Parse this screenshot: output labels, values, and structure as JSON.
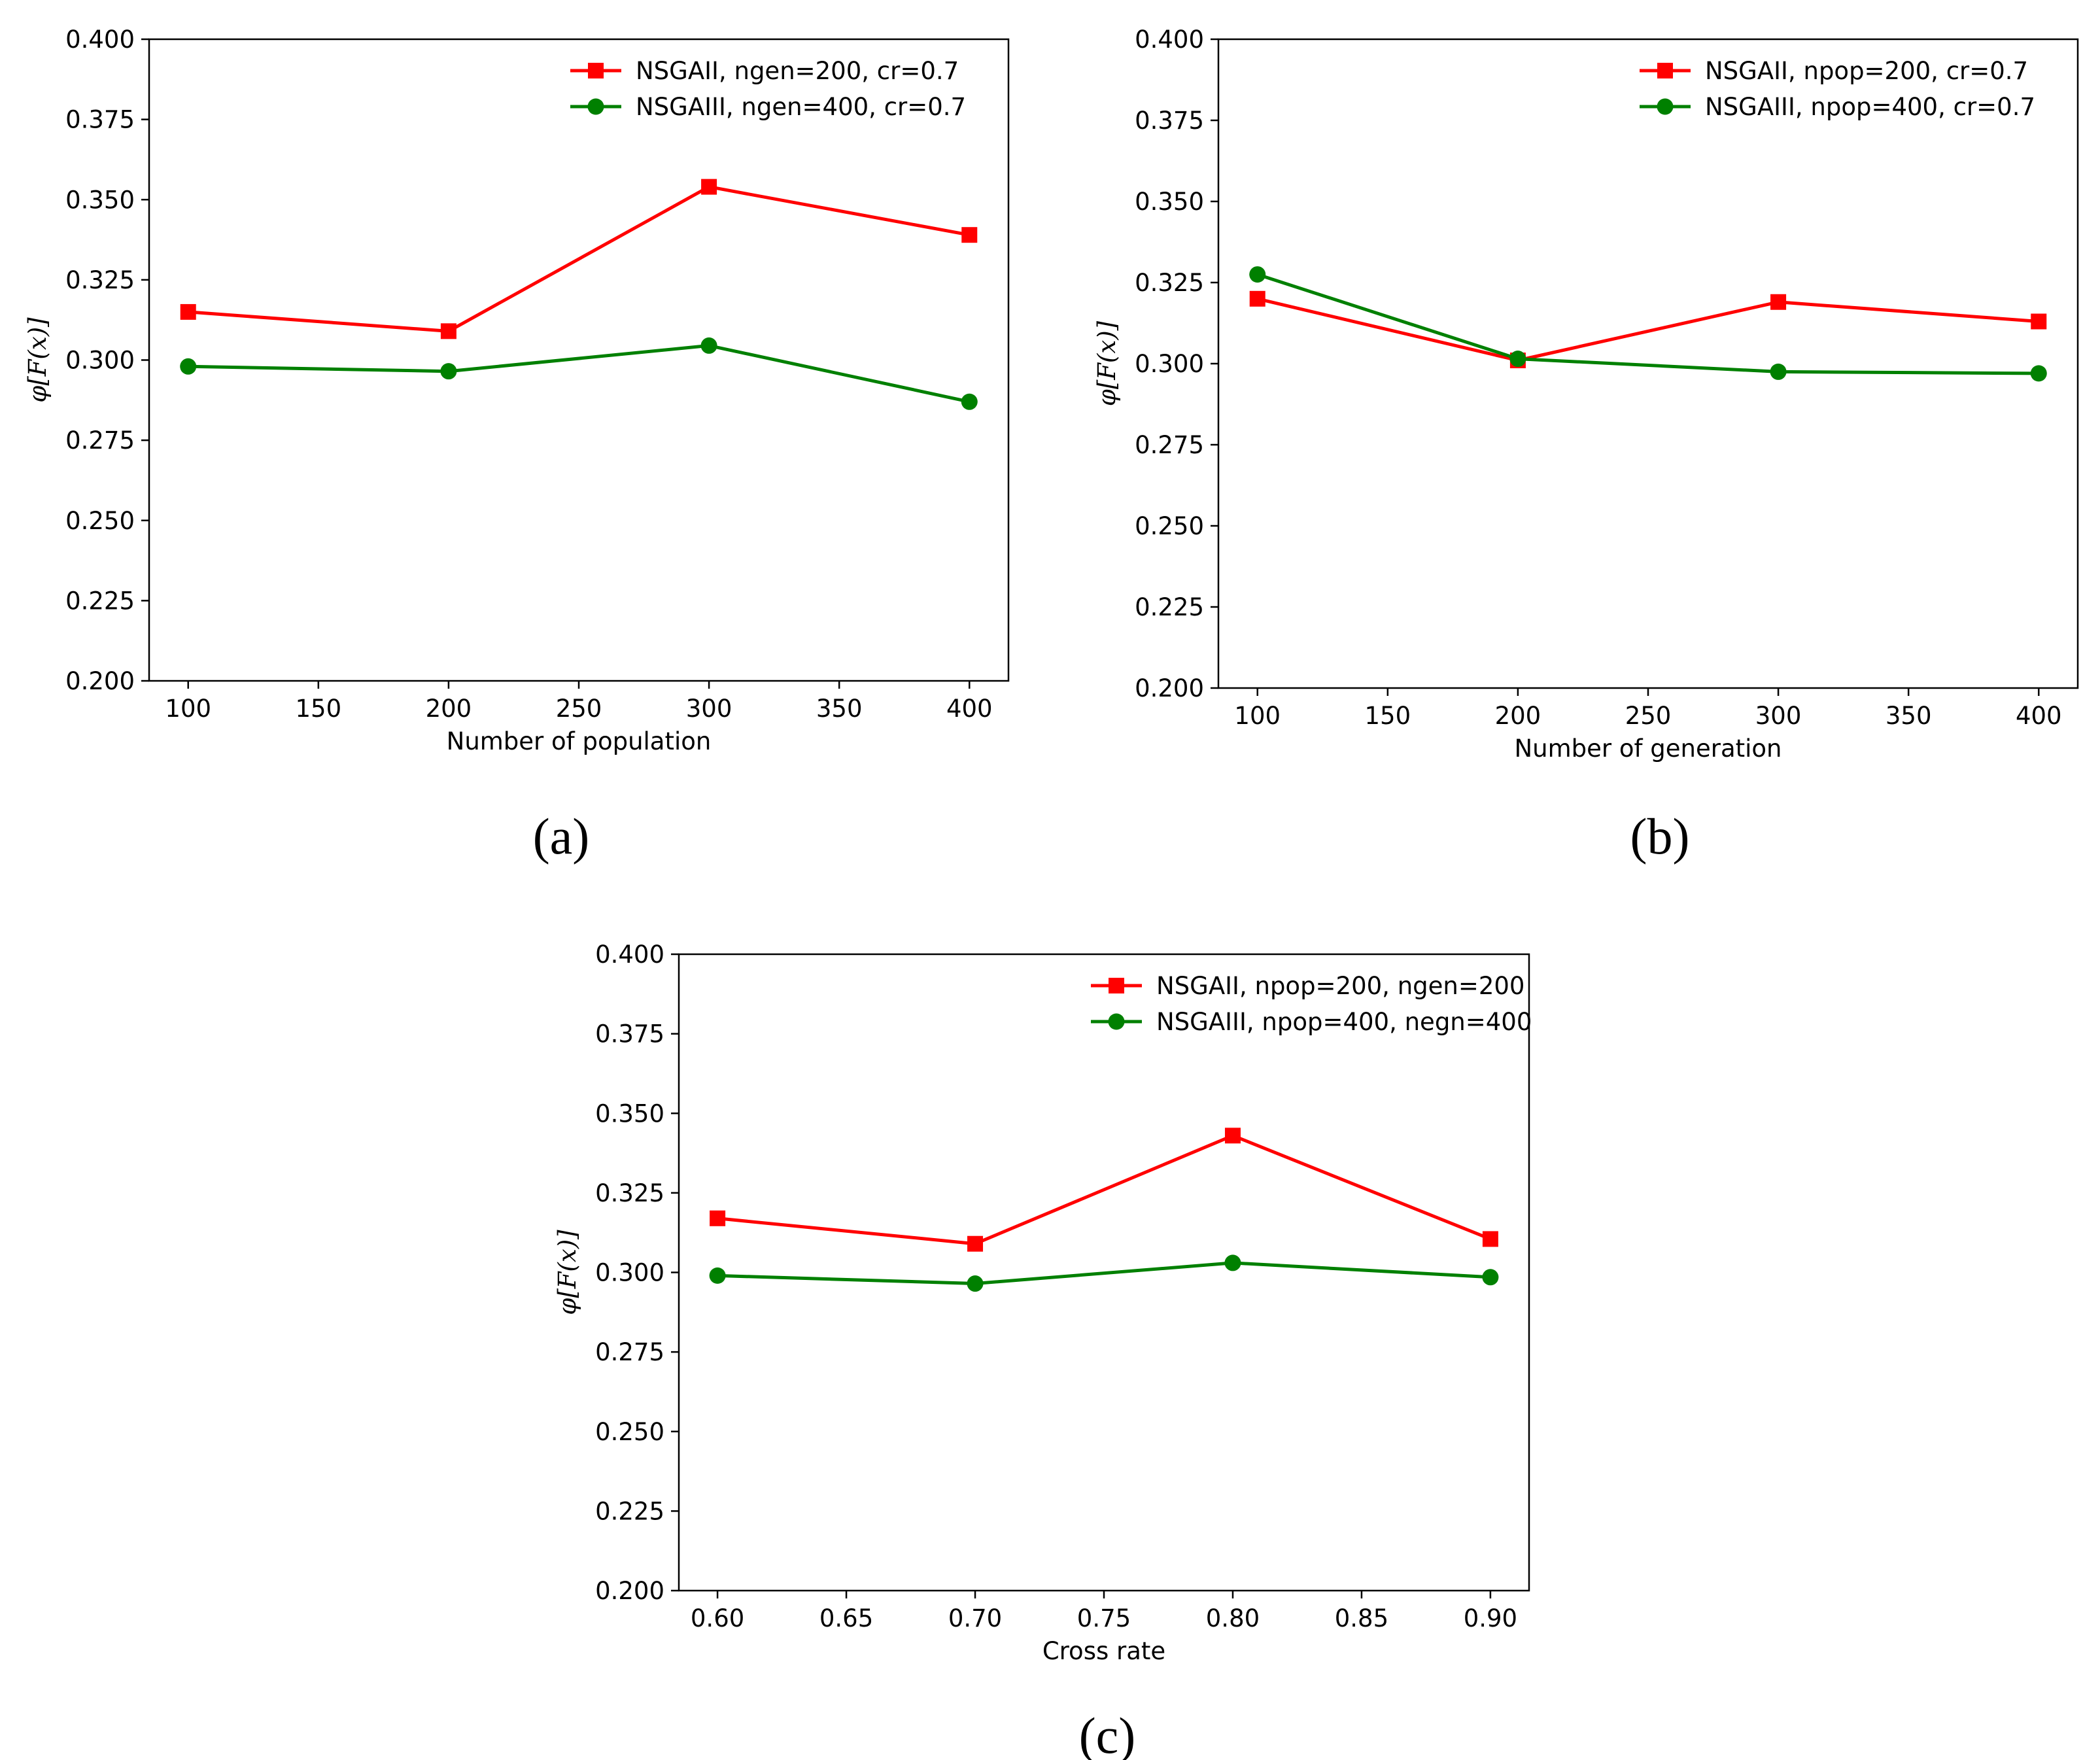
{
  "chart_data": [
    {
      "type": "line",
      "caption": "(a)",
      "xlabel": "Number of population",
      "ylabel": "φ[F(x)]",
      "x": [
        100,
        200,
        300,
        400
      ],
      "xlim": [
        85,
        415
      ],
      "ylim": [
        0.2,
        0.4
      ],
      "xticks": [
        100,
        150,
        200,
        250,
        300,
        350,
        400
      ],
      "xtick_labels": [
        "100",
        "150",
        "200",
        "250",
        "300",
        "350",
        "400"
      ],
      "yticks": [
        0.2,
        0.225,
        0.25,
        0.275,
        0.3,
        0.325,
        0.35,
        0.375,
        0.4
      ],
      "ytick_labels": [
        "0.200",
        "0.225",
        "0.250",
        "0.275",
        "0.300",
        "0.325",
        "0.350",
        "0.375",
        "0.400"
      ],
      "legend_position": "top-right",
      "grid": false,
      "series": [
        {
          "name": "NSGAII, ngen=200, cr=0.7",
          "color": "#ff0000",
          "marker": "square",
          "values": [
            0.315,
            0.309,
            0.354,
            0.339
          ]
        },
        {
          "name": "NSGAIII, ngen=400, cr=0.7",
          "color": "#008000",
          "marker": "circle",
          "values": [
            0.298,
            0.2965,
            0.3045,
            0.287
          ]
        }
      ]
    },
    {
      "type": "line",
      "caption": "(b)",
      "xlabel": "Number of generation",
      "ylabel": "φ[F(x)]",
      "x": [
        100,
        200,
        300,
        400
      ],
      "xlim": [
        85,
        415
      ],
      "ylim": [
        0.2,
        0.4
      ],
      "xticks": [
        100,
        150,
        200,
        250,
        300,
        350,
        400
      ],
      "xtick_labels": [
        "100",
        "150",
        "200",
        "250",
        "300",
        "350",
        "400"
      ],
      "yticks": [
        0.2,
        0.225,
        0.25,
        0.275,
        0.3,
        0.325,
        0.35,
        0.375,
        0.4
      ],
      "ytick_labels": [
        "0.200",
        "0.225",
        "0.250",
        "0.275",
        "0.300",
        "0.325",
        "0.350",
        "0.375",
        "0.400"
      ],
      "legend_position": "top-right",
      "grid": false,
      "series": [
        {
          "name": "NSGAII, npop=200, cr=0.7",
          "color": "#ff0000",
          "marker": "square",
          "values": [
            0.32,
            0.301,
            0.319,
            0.313
          ]
        },
        {
          "name": "NSGAIII, npop=400, cr=0.7",
          "color": "#008000",
          "marker": "circle",
          "values": [
            0.3275,
            0.3015,
            0.2975,
            0.297
          ]
        }
      ]
    },
    {
      "type": "line",
      "caption": "(c)",
      "xlabel": "Cross rate",
      "ylabel": "φ[F(x)]",
      "x": [
        0.6,
        0.7,
        0.8,
        0.9
      ],
      "xlim": [
        0.585,
        0.915
      ],
      "ylim": [
        0.2,
        0.4
      ],
      "xticks": [
        0.6,
        0.65,
        0.7,
        0.75,
        0.8,
        0.85,
        0.9
      ],
      "xtick_labels": [
        "0.60",
        "0.65",
        "0.70",
        "0.75",
        "0.80",
        "0.85",
        "0.90"
      ],
      "yticks": [
        0.2,
        0.225,
        0.25,
        0.275,
        0.3,
        0.325,
        0.35,
        0.375,
        0.4
      ],
      "ytick_labels": [
        "0.200",
        "0.225",
        "0.250",
        "0.275",
        "0.300",
        "0.325",
        "0.350",
        "0.375",
        "0.400"
      ],
      "legend_position": "top-right",
      "grid": false,
      "series": [
        {
          "name": "NSGAII, npop=200, ngen=200",
          "color": "#ff0000",
          "marker": "square",
          "values": [
            0.317,
            0.309,
            0.343,
            0.3105
          ]
        },
        {
          "name": "NSGAIII, npop=400, negn=400",
          "color": "#008000",
          "marker": "circle",
          "values": [
            0.299,
            0.2965,
            0.303,
            0.2985
          ]
        }
      ]
    }
  ]
}
